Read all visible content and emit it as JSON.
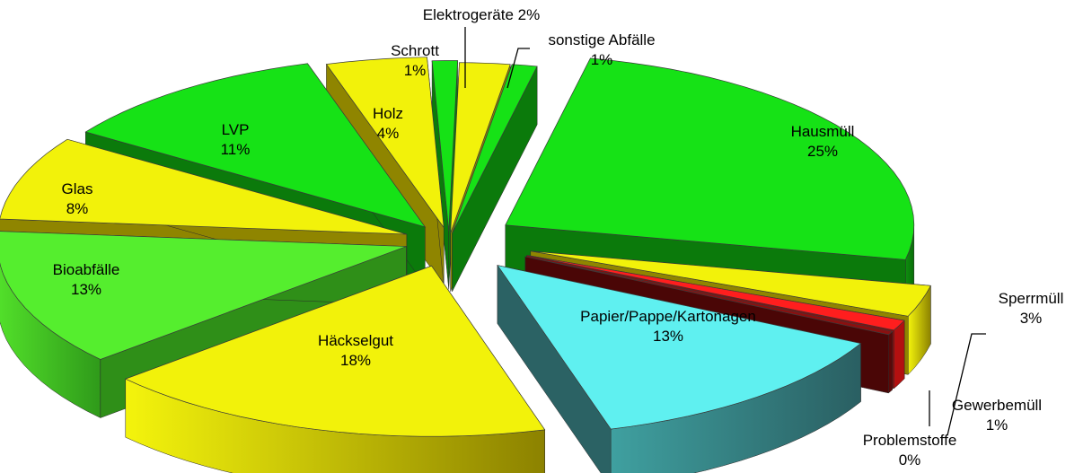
{
  "chart_data": {
    "type": "pie",
    "style": "3d-exploded",
    "title": "",
    "slices": [
      {
        "label": "Hausmüll",
        "value": 25,
        "value_label": "25%",
        "color": "#16e216"
      },
      {
        "label": "Sperrmüll",
        "value": 3,
        "value_label": "3%",
        "color": "#f2f20a"
      },
      {
        "label": "Gewerbemüll",
        "value": 1,
        "value_label": "1%",
        "color": "#ff1e1e"
      },
      {
        "label": "Problemstoffe",
        "value": 0,
        "value_label": "0%",
        "color": "#8a1010"
      },
      {
        "label": "Papier/Pappe/Kartonagen",
        "value": 13,
        "value_label": "13%",
        "color": "#5ff0f0"
      },
      {
        "label": "Häckselgut",
        "value": 18,
        "value_label": "18%",
        "color": "#f2f20a"
      },
      {
        "label": "Bioabfälle",
        "value": 13,
        "value_label": "13%",
        "color": "#55ee2e"
      },
      {
        "label": "Glas",
        "value": 8,
        "value_label": "8%",
        "color": "#f2f20a"
      },
      {
        "label": "LVP",
        "value": 11,
        "value_label": "11%",
        "color": "#16e216"
      },
      {
        "label": "Holz",
        "value": 4,
        "value_label": "4%",
        "color": "#f2f20a"
      },
      {
        "label": "Schrott",
        "value": 1,
        "value_label": "1%",
        "color": "#16e216"
      },
      {
        "label": "Elektrogeräte",
        "value": 2,
        "value_label": "2%",
        "color": "#f2f20a"
      },
      {
        "label": "sonstige Abfälle",
        "value": 1,
        "value_label": "1%",
        "color": "#16e216"
      }
    ]
  }
}
